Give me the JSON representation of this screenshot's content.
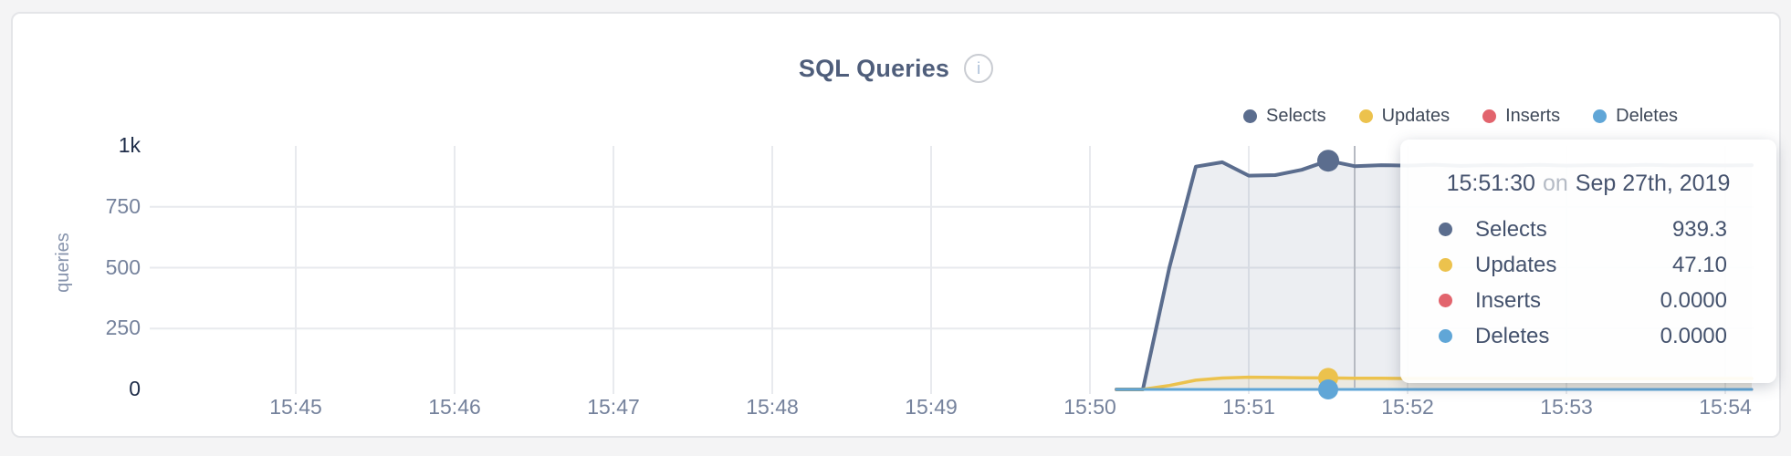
{
  "header": {
    "title": "SQL Queries",
    "info_glyph": "i"
  },
  "axes": {
    "y_label": "queries",
    "y_ticks": [
      {
        "label": "1k",
        "value": 1000,
        "emphasis": true,
        "grid": false
      },
      {
        "label": "750",
        "value": 750,
        "emphasis": false,
        "grid": true
      },
      {
        "label": "500",
        "value": 500,
        "emphasis": false,
        "grid": true
      },
      {
        "label": "250",
        "value": 250,
        "emphasis": false,
        "grid": true
      },
      {
        "label": "0",
        "value": 0,
        "emphasis": true,
        "grid": false
      }
    ],
    "x_ticks": [
      {
        "label": "15:45"
      },
      {
        "label": "15:46"
      },
      {
        "label": "15:47"
      },
      {
        "label": "15:48"
      },
      {
        "label": "15:49"
      },
      {
        "label": "15:50"
      },
      {
        "label": "15:51"
      },
      {
        "label": "15:52"
      },
      {
        "label": "15:53"
      },
      {
        "label": "15:54"
      }
    ]
  },
  "legend": {
    "items": [
      {
        "label": "Selects",
        "color": "#5b6d8e"
      },
      {
        "label": "Updates",
        "color": "#ecc24d"
      },
      {
        "label": "Inserts",
        "color": "#e2646d"
      },
      {
        "label": "Deletes",
        "color": "#60a6d7"
      }
    ]
  },
  "tooltip": {
    "time": "15:51:30",
    "connector": "on",
    "date": "Sep 27th, 2019",
    "rows": [
      {
        "label": "Selects",
        "value": "939.3",
        "color": "#5b6d8e"
      },
      {
        "label": "Updates",
        "value": "47.10",
        "color": "#ecc24d"
      },
      {
        "label": "Inserts",
        "value": "0.0000",
        "color": "#e2646d"
      },
      {
        "label": "Deletes",
        "value": "0.0000",
        "color": "#60a6d7"
      }
    ]
  },
  "chart_data": {
    "type": "area",
    "title": "SQL Queries",
    "ylabel": "queries",
    "ylim": [
      0,
      1000
    ],
    "x_axis_labels": [
      "15:45",
      "15:46",
      "15:47",
      "15:48",
      "15:49",
      "15:50",
      "15:51",
      "15:52",
      "15:53",
      "15:54"
    ],
    "grid": true,
    "grid_color": "#e8eaee",
    "legend_position": "top-right",
    "crosshair_time": "15:51:40",
    "crosshair_color": "#b6bac2",
    "marker_time": "15:51:30",
    "series": [
      {
        "name": "Selects",
        "color": "#5b6d8e",
        "fill": "rgba(99,115,148,0.12)",
        "width": 4,
        "marker_value": 939.3,
        "marker_r": 12,
        "points": [
          [
            "15:50:10",
            0
          ],
          [
            "15:50:20",
            0
          ],
          [
            "15:50:30",
            500
          ],
          [
            "15:50:40",
            915
          ],
          [
            "15:50:50",
            933
          ],
          [
            "15:51:00",
            878
          ],
          [
            "15:51:10",
            880
          ],
          [
            "15:51:20",
            902
          ],
          [
            "15:51:30",
            939.3
          ],
          [
            "15:51:40",
            917
          ],
          [
            "15:51:50",
            921
          ],
          [
            "15:52:00",
            919
          ],
          [
            "15:52:10",
            923
          ],
          [
            "15:52:20",
            918
          ],
          [
            "15:52:30",
            921
          ],
          [
            "15:52:40",
            920
          ],
          [
            "15:52:50",
            922
          ],
          [
            "15:53:00",
            919
          ],
          [
            "15:53:10",
            921
          ],
          [
            "15:53:20",
            920
          ],
          [
            "15:53:30",
            922
          ],
          [
            "15:53:40",
            920
          ],
          [
            "15:53:50",
            921
          ],
          [
            "15:54:00",
            920
          ],
          [
            "15:54:10",
            921
          ]
        ]
      },
      {
        "name": "Updates",
        "color": "#ecc24d",
        "fill": "rgba(236,194,77,0.10)",
        "width": 3.5,
        "marker_value": 47.1,
        "marker_r": 11,
        "points": [
          [
            "15:50:10",
            0
          ],
          [
            "15:50:20",
            0
          ],
          [
            "15:50:30",
            16
          ],
          [
            "15:50:40",
            38
          ],
          [
            "15:50:50",
            47
          ],
          [
            "15:51:00",
            50
          ],
          [
            "15:51:10",
            49
          ],
          [
            "15:51:20",
            48
          ],
          [
            "15:51:30",
            47.1
          ],
          [
            "15:51:40",
            46
          ],
          [
            "15:51:50",
            46
          ],
          [
            "15:52:00",
            45
          ],
          [
            "15:52:30",
            45
          ],
          [
            "15:53:00",
            44
          ],
          [
            "15:53:30",
            44
          ],
          [
            "15:54:00",
            45
          ],
          [
            "15:54:10",
            45
          ]
        ]
      },
      {
        "name": "Inserts",
        "color": "#e2646d",
        "fill": "none",
        "width": 3,
        "marker_value": 0,
        "marker_r": 10,
        "points": [
          [
            "15:50:10",
            0
          ],
          [
            "15:51:00",
            0
          ],
          [
            "15:52:00",
            0
          ],
          [
            "15:53:00",
            0
          ],
          [
            "15:54:10",
            0
          ]
        ]
      },
      {
        "name": "Deletes",
        "color": "#60a6d7",
        "fill": "none",
        "width": 3,
        "marker_value": 0,
        "marker_r": 11,
        "points": [
          [
            "15:50:10",
            0
          ],
          [
            "15:51:00",
            0
          ],
          [
            "15:52:00",
            0
          ],
          [
            "15:53:00",
            0
          ],
          [
            "15:54:10",
            0
          ]
        ]
      }
    ]
  }
}
